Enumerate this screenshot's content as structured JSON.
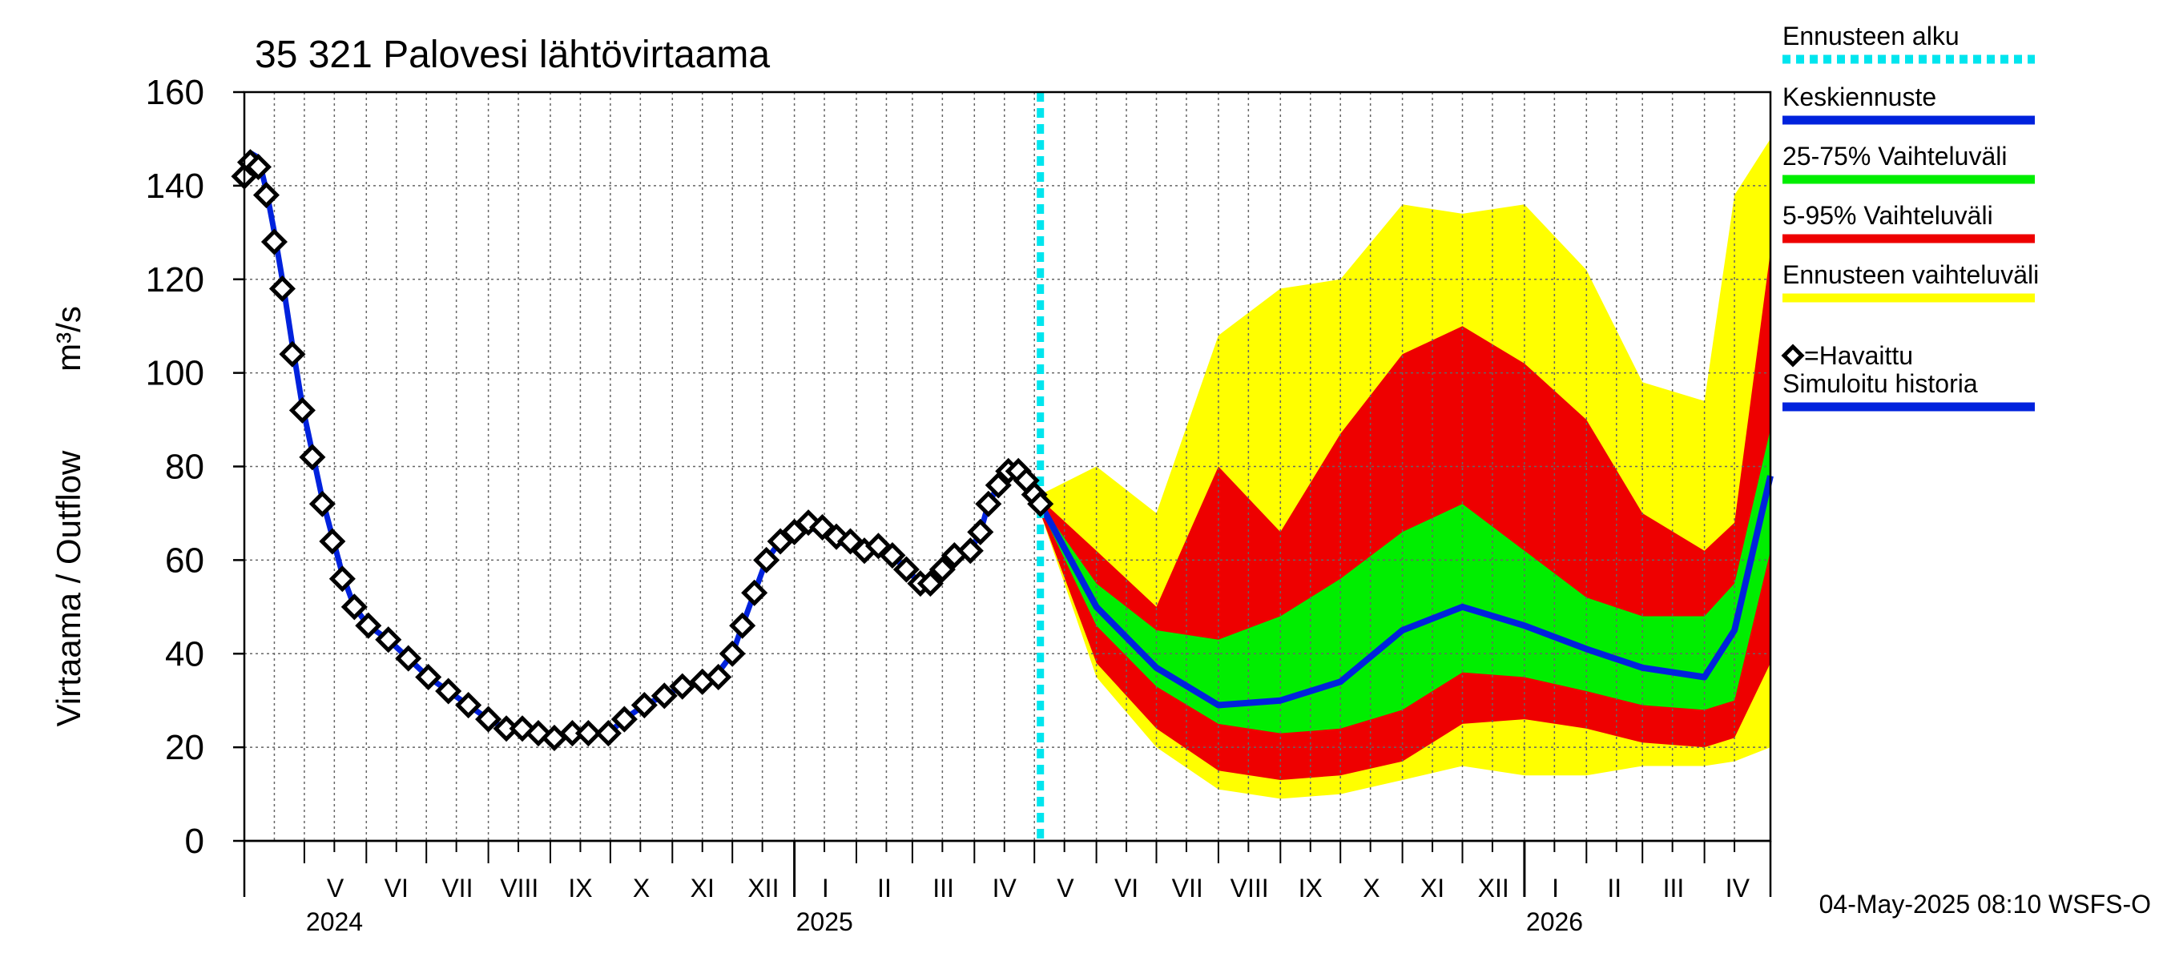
{
  "chart_data": {
    "type": "area",
    "title": "35 321 Palovesi lähtövirtaama",
    "ylabel": "Virtaama / Outflow",
    "yunit": "m³/s",
    "ylim": [
      0,
      160
    ],
    "yticks": [
      0,
      20,
      40,
      60,
      80,
      100,
      120,
      140,
      160
    ],
    "grid": true,
    "xlim": [
      "2024-04-01",
      "2026-05-04"
    ],
    "forecast_start": "2025-05-04",
    "month_labels": [
      {
        "label": "V",
        "date": "2024-05-01"
      },
      {
        "label": "VI",
        "date": "2024-06-01"
      },
      {
        "label": "VII",
        "date": "2024-07-01"
      },
      {
        "label": "VIII",
        "date": "2024-08-01"
      },
      {
        "label": "IX",
        "date": "2024-09-01"
      },
      {
        "label": "X",
        "date": "2024-10-01"
      },
      {
        "label": "XI",
        "date": "2024-11-01"
      },
      {
        "label": "XII",
        "date": "2024-12-01"
      },
      {
        "label": "I",
        "date": "2025-01-01"
      },
      {
        "label": "II",
        "date": "2025-02-01"
      },
      {
        "label": "III",
        "date": "2025-03-01"
      },
      {
        "label": "IV",
        "date": "2025-04-01"
      },
      {
        "label": "V",
        "date": "2025-05-01"
      },
      {
        "label": "VI",
        "date": "2025-06-01"
      },
      {
        "label": "VII",
        "date": "2025-07-01"
      },
      {
        "label": "VIII",
        "date": "2025-08-01"
      },
      {
        "label": "IX",
        "date": "2025-09-01"
      },
      {
        "label": "X",
        "date": "2025-10-01"
      },
      {
        "label": "XI",
        "date": "2025-11-01"
      },
      {
        "label": "XII",
        "date": "2025-12-01"
      },
      {
        "label": "I",
        "date": "2026-01-01"
      },
      {
        "label": "II",
        "date": "2026-02-01"
      },
      {
        "label": "III",
        "date": "2026-03-01"
      },
      {
        "label": "IV",
        "date": "2026-04-01"
      }
    ],
    "year_labels": [
      {
        "label": "2024",
        "date": "2024-05-01"
      },
      {
        "label": "2025",
        "date": "2025-01-01"
      },
      {
        "label": "2026",
        "date": "2026-01-01"
      }
    ],
    "footer": "04-May-2025 08:10 WSFS-O",
    "legend": [
      {
        "label": "Ennusteen alku",
        "color": "#00e5ee",
        "style": "dotted"
      },
      {
        "label": "Keskiennuste",
        "color": "#0022dd",
        "style": "line"
      },
      {
        "label": "25-75% Vaihteluväli",
        "color": "#00ee00",
        "style": "line"
      },
      {
        "label": "5-95% Vaihteluväli",
        "color": "#ee0000",
        "style": "line"
      },
      {
        "label": "Ennusteen vaihteluväli",
        "color": "#ffff00",
        "style": "line"
      },
      {
        "label": "=Havaittu",
        "color": "#000000",
        "style": "diamond"
      },
      {
        "label": "Simuloitu historia",
        "color": "#0022dd",
        "style": "line"
      }
    ],
    "series": {
      "observed": [
        [
          "2024-04-01",
          142
        ],
        [
          "2024-04-04",
          145
        ],
        [
          "2024-04-08",
          144
        ],
        [
          "2024-04-12",
          138
        ],
        [
          "2024-04-16",
          128
        ],
        [
          "2024-04-20",
          118
        ],
        [
          "2024-04-25",
          104
        ],
        [
          "2024-04-30",
          92
        ],
        [
          "2024-05-05",
          82
        ],
        [
          "2024-05-10",
          72
        ],
        [
          "2024-05-15",
          64
        ],
        [
          "2024-05-20",
          56
        ],
        [
          "2024-05-26",
          50
        ],
        [
          "2024-06-02",
          46
        ],
        [
          "2024-06-12",
          43
        ],
        [
          "2024-06-22",
          39
        ],
        [
          "2024-07-02",
          35
        ],
        [
          "2024-07-12",
          32
        ],
        [
          "2024-07-22",
          29
        ],
        [
          "2024-08-01",
          26
        ],
        [
          "2024-08-10",
          24
        ],
        [
          "2024-08-18",
          24
        ],
        [
          "2024-08-26",
          23
        ],
        [
          "2024-09-03",
          22
        ],
        [
          "2024-09-12",
          23
        ],
        [
          "2024-09-20",
          23
        ],
        [
          "2024-09-30",
          23
        ],
        [
          "2024-10-08",
          26
        ],
        [
          "2024-10-18",
          29
        ],
        [
          "2024-10-28",
          31
        ],
        [
          "2024-11-06",
          33
        ],
        [
          "2024-11-16",
          34
        ],
        [
          "2024-11-24",
          35
        ],
        [
          "2024-12-01",
          40
        ],
        [
          "2024-12-06",
          46
        ],
        [
          "2024-12-12",
          53
        ],
        [
          "2024-12-18",
          60
        ],
        [
          "2024-12-25",
          64
        ],
        [
          "2025-01-01",
          66
        ],
        [
          "2025-01-08",
          68
        ],
        [
          "2025-01-15",
          67
        ],
        [
          "2025-01-22",
          65
        ],
        [
          "2025-01-29",
          64
        ],
        [
          "2025-02-05",
          62
        ],
        [
          "2025-02-12",
          63
        ],
        [
          "2025-02-19",
          61
        ],
        [
          "2025-02-26",
          58
        ],
        [
          "2025-03-05",
          55
        ],
        [
          "2025-03-10",
          55
        ],
        [
          "2025-03-16",
          58
        ],
        [
          "2025-03-22",
          61
        ],
        [
          "2025-03-30",
          62
        ],
        [
          "2025-04-04",
          66
        ],
        [
          "2025-04-08",
          72
        ],
        [
          "2025-04-13",
          76
        ],
        [
          "2025-04-18",
          79
        ],
        [
          "2025-04-23",
          79
        ],
        [
          "2025-04-27",
          77
        ],
        [
          "2025-05-01",
          74
        ],
        [
          "2025-05-04",
          72
        ]
      ],
      "simulated": [
        [
          "2024-04-01",
          142
        ],
        [
          "2024-04-04",
          147
        ],
        [
          "2024-04-08",
          146
        ],
        [
          "2024-04-12",
          139
        ],
        [
          "2024-04-16",
          130
        ],
        [
          "2024-04-20",
          120
        ],
        [
          "2024-04-25",
          106
        ],
        [
          "2024-04-30",
          93
        ],
        [
          "2024-05-05",
          83
        ],
        [
          "2024-05-10",
          73
        ],
        [
          "2024-05-15",
          65
        ],
        [
          "2024-05-20",
          57
        ],
        [
          "2024-05-26",
          50
        ],
        [
          "2024-06-02",
          46
        ],
        [
          "2024-06-12",
          43
        ],
        [
          "2024-06-22",
          39
        ],
        [
          "2024-07-02",
          35
        ],
        [
          "2024-07-12",
          32
        ],
        [
          "2024-07-22",
          29
        ],
        [
          "2024-08-01",
          26
        ],
        [
          "2024-08-10",
          24
        ],
        [
          "2024-08-18",
          24
        ],
        [
          "2024-08-26",
          23
        ],
        [
          "2024-09-03",
          22
        ],
        [
          "2024-09-12",
          23
        ],
        [
          "2024-09-20",
          23
        ],
        [
          "2024-09-30",
          23
        ],
        [
          "2024-10-08",
          26
        ],
        [
          "2024-10-18",
          29
        ],
        [
          "2024-10-28",
          31
        ],
        [
          "2024-11-06",
          33
        ],
        [
          "2024-11-16",
          34
        ],
        [
          "2024-11-24",
          36
        ],
        [
          "2024-12-01",
          40
        ],
        [
          "2024-12-06",
          46
        ],
        [
          "2024-12-12",
          53
        ],
        [
          "2024-12-18",
          60
        ],
        [
          "2024-12-25",
          64
        ],
        [
          "2025-01-01",
          66
        ],
        [
          "2025-01-08",
          67
        ],
        [
          "2025-01-15",
          66
        ],
        [
          "2025-01-22",
          64
        ],
        [
          "2025-01-29",
          63
        ],
        [
          "2025-02-05",
          62
        ],
        [
          "2025-02-12",
          63
        ],
        [
          "2025-02-19",
          61
        ],
        [
          "2025-02-26",
          58
        ],
        [
          "2025-03-05",
          55
        ],
        [
          "2025-03-10",
          55
        ],
        [
          "2025-03-16",
          58
        ],
        [
          "2025-03-22",
          61
        ],
        [
          "2025-03-30",
          62
        ],
        [
          "2025-04-04",
          66
        ],
        [
          "2025-04-08",
          72
        ],
        [
          "2025-04-13",
          76
        ],
        [
          "2025-04-18",
          79
        ],
        [
          "2025-04-23",
          79
        ],
        [
          "2025-04-27",
          77
        ],
        [
          "2025-05-01",
          74
        ],
        [
          "2025-05-04",
          72
        ]
      ],
      "forecast_dates": [
        "2025-05-04",
        "2025-06-01",
        "2025-07-01",
        "2025-08-01",
        "2025-09-01",
        "2025-10-01",
        "2025-11-01",
        "2025-12-01",
        "2026-01-01",
        "2026-02-01",
        "2026-03-01",
        "2026-04-01",
        "2026-04-16",
        "2026-05-04"
      ],
      "median": [
        72,
        50,
        37,
        29,
        30,
        34,
        45,
        50,
        46,
        41,
        37,
        35,
        45,
        78
      ],
      "p25": [
        71,
        46,
        33,
        25,
        23,
        24,
        28,
        36,
        35,
        32,
        29,
        28,
        30,
        62
      ],
      "p75": [
        72,
        55,
        45,
        43,
        48,
        56,
        66,
        72,
        62,
        52,
        48,
        48,
        55,
        88
      ],
      "p5": [
        70,
        38,
        24,
        15,
        13,
        14,
        17,
        25,
        26,
        24,
        21,
        20,
        22,
        38
      ],
      "p95": [
        73,
        62,
        50,
        80,
        66,
        87,
        104,
        110,
        102,
        90,
        70,
        62,
        68,
        126
      ],
      "min": [
        70,
        35,
        20,
        11,
        9,
        10,
        13,
        16,
        14,
        14,
        16,
        16,
        17,
        20
      ],
      "max": [
        74,
        80,
        70,
        108,
        118,
        120,
        136,
        134,
        136,
        122,
        98,
        94,
        138,
        150
      ]
    }
  }
}
